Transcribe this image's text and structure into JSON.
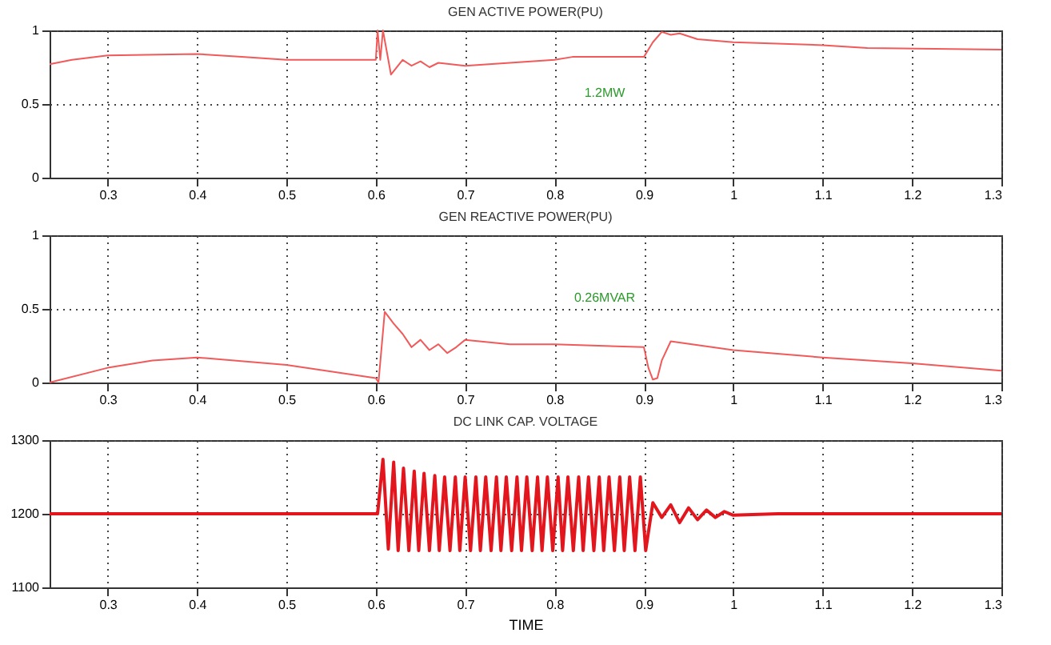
{
  "chart_data": [
    {
      "type": "line",
      "title": "GEN ACTIVE POWER(PU)",
      "xlim": [
        0.235,
        1.3
      ],
      "xticks": [
        0.3,
        0.4,
        0.5,
        0.6,
        0.7,
        0.8,
        0.9,
        1,
        1.1,
        1.2,
        1.3
      ],
      "ylim": [
        0,
        1
      ],
      "yticks": [
        0,
        0.5,
        1
      ],
      "grid": true,
      "annotations": [
        "1.2MW"
      ],
      "series": [
        {
          "color": "#f05a5a",
          "x": [
            0.235,
            0.26,
            0.3,
            0.4,
            0.45,
            0.5,
            0.6,
            0.602,
            0.605,
            0.608,
            0.617,
            0.63,
            0.64,
            0.65,
            0.66,
            0.67,
            0.7,
            0.75,
            0.8,
            0.82,
            0.9,
            0.91,
            0.92,
            0.93,
            0.94,
            0.96,
            1.0,
            1.1,
            1.15,
            1.3
          ],
          "values": [
            0.77,
            0.8,
            0.83,
            0.84,
            0.82,
            0.8,
            0.8,
            1,
            0.8,
            1,
            0.7,
            0.8,
            0.76,
            0.79,
            0.75,
            0.78,
            0.76,
            0.78,
            0.8,
            0.82,
            0.82,
            0.92,
            0.99,
            0.97,
            0.98,
            0.94,
            0.92,
            0.9,
            0.88,
            0.87
          ]
        }
      ]
    },
    {
      "type": "line",
      "title": "GEN REACTIVE POWER(PU)",
      "xlim": [
        0.235,
        1.3
      ],
      "xticks": [
        0.3,
        0.4,
        0.5,
        0.6,
        0.7,
        0.8,
        0.9,
        1,
        1.1,
        1.2,
        1.3
      ],
      "ylim": [
        0,
        1
      ],
      "yticks": [
        0,
        0.5,
        1
      ],
      "grid": true,
      "annotations": [
        "0.26MVAR"
      ],
      "series": [
        {
          "color": "#f05a5a",
          "x": [
            0.235,
            0.3,
            0.35,
            0.4,
            0.5,
            0.6,
            0.603,
            0.61,
            0.62,
            0.63,
            0.64,
            0.65,
            0.66,
            0.67,
            0.68,
            0.69,
            0.7,
            0.75,
            0.8,
            0.9,
            0.905,
            0.91,
            0.915,
            0.92,
            0.93,
            1.0,
            1.1,
            1.2,
            1.3
          ],
          "values": [
            0.0,
            0.1,
            0.15,
            0.17,
            0.12,
            0.03,
            0.0,
            0.48,
            0.4,
            0.33,
            0.24,
            0.29,
            0.22,
            0.26,
            0.2,
            0.24,
            0.29,
            0.26,
            0.26,
            0.24,
            0.1,
            0.02,
            0.03,
            0.15,
            0.28,
            0.22,
            0.17,
            0.13,
            0.08
          ]
        }
      ]
    },
    {
      "type": "line",
      "title": "DC LINK CAP. VOLTAGE",
      "xlabel": "TIME",
      "xlim": [
        0.235,
        1.3
      ],
      "xticks": [
        0.3,
        0.4,
        0.5,
        0.6,
        0.7,
        0.8,
        0.9,
        1,
        1.1,
        1.2,
        1.3
      ],
      "ylim": [
        1100,
        1300
      ],
      "yticks": [
        1100,
        1200,
        1300
      ],
      "grid": true,
      "series": [
        {
          "color": "#e3161e",
          "x": [
            0.235,
            0.6,
            0.602,
            0.608,
            0.614,
            0.62,
            0.625,
            0.631,
            0.637,
            0.643,
            0.648,
            0.654,
            0.66,
            0.666,
            0.671,
            0.677,
            0.683,
            0.689,
            0.694,
            0.7,
            0.706,
            0.712,
            0.717,
            0.723,
            0.729,
            0.735,
            0.74,
            0.746,
            0.752,
            0.758,
            0.763,
            0.769,
            0.775,
            0.781,
            0.786,
            0.792,
            0.798,
            0.804,
            0.809,
            0.815,
            0.821,
            0.827,
            0.832,
            0.838,
            0.844,
            0.85,
            0.855,
            0.861,
            0.867,
            0.873,
            0.878,
            0.884,
            0.89,
            0.896,
            0.902,
            0.91,
            0.92,
            0.93,
            0.94,
            0.95,
            0.96,
            0.97,
            0.98,
            0.99,
            1.0,
            1.05,
            1.3
          ],
          "values": [
            1200,
            1200,
            1200,
            1274,
            1152,
            1270,
            1150,
            1262,
            1150,
            1258,
            1150,
            1255,
            1150,
            1252,
            1150,
            1250,
            1150,
            1250,
            1150,
            1250,
            1150,
            1250,
            1150,
            1250,
            1150,
            1250,
            1150,
            1250,
            1150,
            1250,
            1150,
            1250,
            1150,
            1250,
            1150,
            1250,
            1150,
            1250,
            1150,
            1250,
            1150,
            1250,
            1150,
            1250,
            1150,
            1250,
            1150,
            1250,
            1150,
            1250,
            1150,
            1250,
            1150,
            1250,
            1150,
            1215,
            1195,
            1212,
            1188,
            1208,
            1192,
            1205,
            1195,
            1203,
            1198,
            1200,
            1200
          ]
        }
      ]
    }
  ]
}
